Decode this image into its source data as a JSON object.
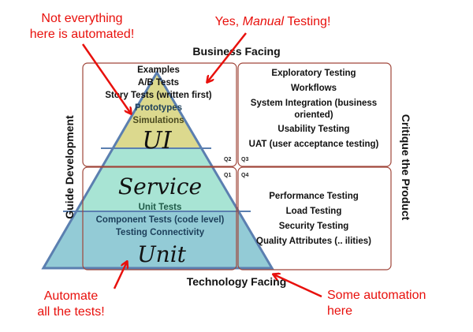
{
  "axes": {
    "top": "Business Facing",
    "bottom": "Technology Facing",
    "left": "Guide Development",
    "right": "Critique the Product"
  },
  "quadrant_labels": {
    "q1": "Q1",
    "q2": "Q2",
    "q3": "Q3",
    "q4": "Q4"
  },
  "q2_items": [
    "Examples",
    "A/B Tests",
    "Story Tests (written first)",
    "Prototypes",
    "Simulations"
  ],
  "q1_items": [
    "Unit Tests",
    "Component Tests (code level)",
    "Testing Connectivity"
  ],
  "q3_items": [
    "Exploratory Testing",
    "Workflows",
    "System Integration (business",
    "oriented)",
    "Usability Testing",
    "UAT (user acceptance testing)"
  ],
  "q4_items": [
    "Performance Testing",
    "Load Testing",
    "Security Testing",
    "Quality Attributes (.. ilities)"
  ],
  "pyramid": {
    "top": "UI",
    "middle": "Service",
    "bottom": "Unit"
  },
  "annotations": {
    "not_automated": [
      "Not everything",
      "here is automated!"
    ],
    "manual": {
      "prefix": "Yes, ",
      "emphasis": "Manual",
      "suffix": " Testing!"
    },
    "automate_all": [
      "Automate",
      "all the tests!"
    ],
    "some_automation": [
      "Some automation",
      "here"
    ]
  },
  "colors": {
    "ui": "#dcd98e",
    "service": "#a8e4d4",
    "unit": "#93cbd6",
    "border": "#a0463a",
    "annotation": "#e8100c",
    "pyramid_edge": "#5b7fb0"
  }
}
